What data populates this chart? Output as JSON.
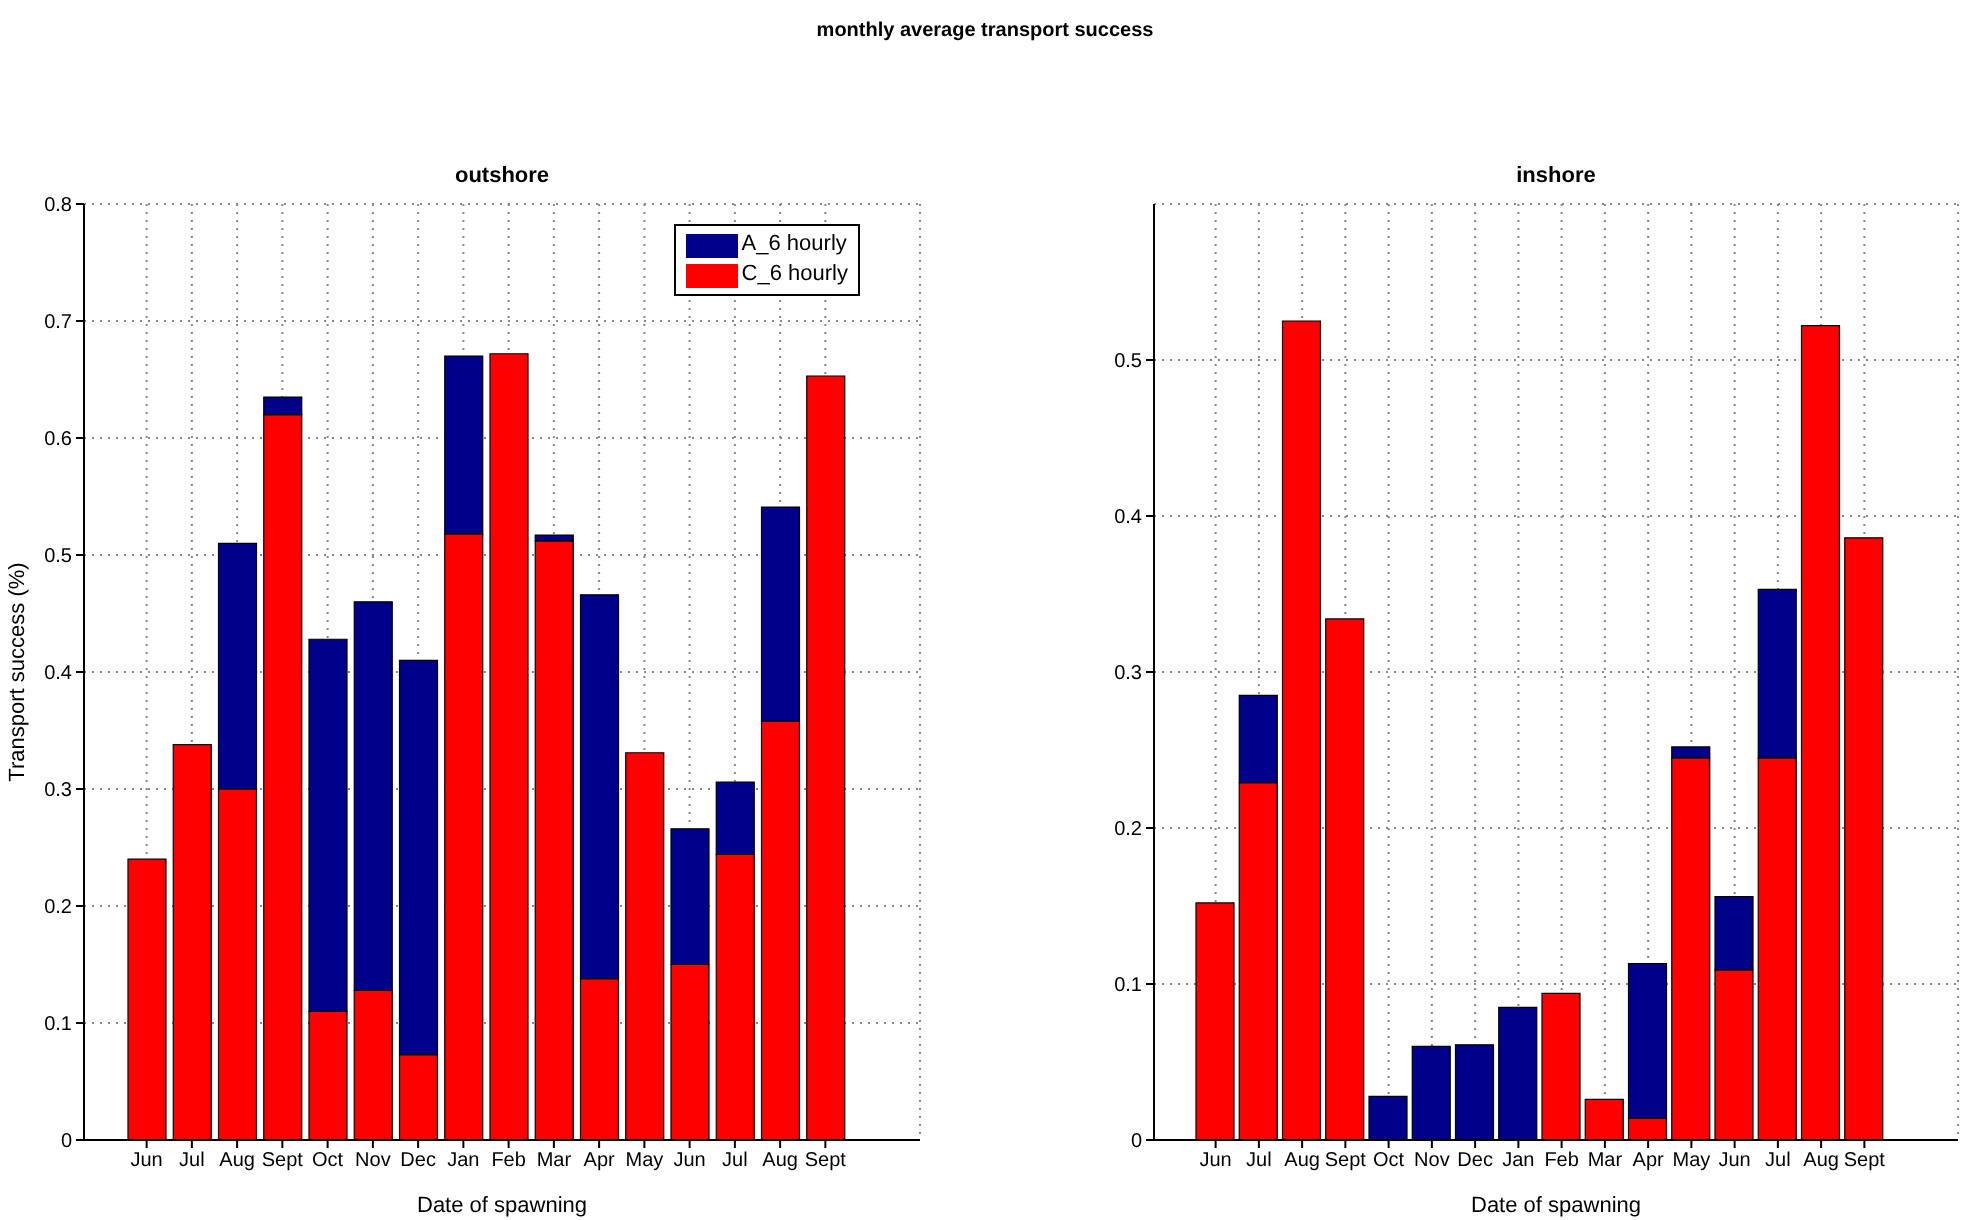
{
  "chart_data": [
    {
      "type": "bar",
      "title": "outshore",
      "annotations": [
        "monthly average transport success"
      ],
      "xlabel": "Date of spawning",
      "ylabel": "Transport success (%)",
      "categories": [
        "Jun",
        "Jul",
        "Aug",
        "Sept",
        "Oct",
        "Nov",
        "Dec",
        "Jan",
        "Feb",
        "Mar",
        "Apr",
        "May",
        "Jun",
        "Jul",
        "Aug",
        "Sept"
      ],
      "stacked": true,
      "series": [
        {
          "name": "C_6 hourly",
          "color": "#ff0000",
          "values": [
            0.24,
            0.338,
            0.3,
            0.62,
            0.11,
            0.128,
            0.073,
            0.518,
            0.672,
            0.512,
            0.138,
            0.331,
            0.15,
            0.244,
            0.358,
            0.653
          ]
        },
        {
          "name": "A_6 hourly",
          "color": "#00008b",
          "values": [
            null,
            null,
            0.21,
            0.015,
            0.318,
            0.332,
            0.337,
            0.152,
            null,
            0.005,
            0.328,
            null,
            0.116,
            0.062,
            0.183,
            null
          ]
        }
      ],
      "ylim": [
        0,
        0.8
      ],
      "yticks": [
        0,
        0.1,
        0.2,
        0.3,
        0.4,
        0.5,
        0.6,
        0.7,
        0.8
      ],
      "grid": true,
      "legend": "top right"
    },
    {
      "type": "bar",
      "title": "inshore",
      "xlabel": "Date of spawning",
      "categories": [
        "Jun",
        "Jul",
        "Aug",
        "Sept",
        "Oct",
        "Nov",
        "Dec",
        "Jan",
        "Feb",
        "Mar",
        "Apr",
        "May",
        "Jun",
        "Jul",
        "Aug",
        "Sept"
      ],
      "stacked": true,
      "series": [
        {
          "color": "#ff0000",
          "values": [
            0.152,
            0.229,
            0.525,
            0.334,
            null,
            null,
            null,
            null,
            0.094,
            0.026,
            0.014,
            0.245,
            0.109,
            0.245,
            0.522,
            0.386
          ]
        },
        {
          "color": "#00008b",
          "values": [
            null,
            0.056,
            null,
            null,
            0.028,
            0.06,
            0.061,
            0.085,
            null,
            null,
            0.099,
            0.007,
            0.047,
            0.108,
            null,
            null
          ]
        }
      ],
      "ylim": [
        0,
        0.6
      ],
      "yticks": [
        0,
        0.1,
        0.2,
        0.3,
        0.4,
        0.5
      ],
      "grid": true,
      "legend": false
    }
  ]
}
